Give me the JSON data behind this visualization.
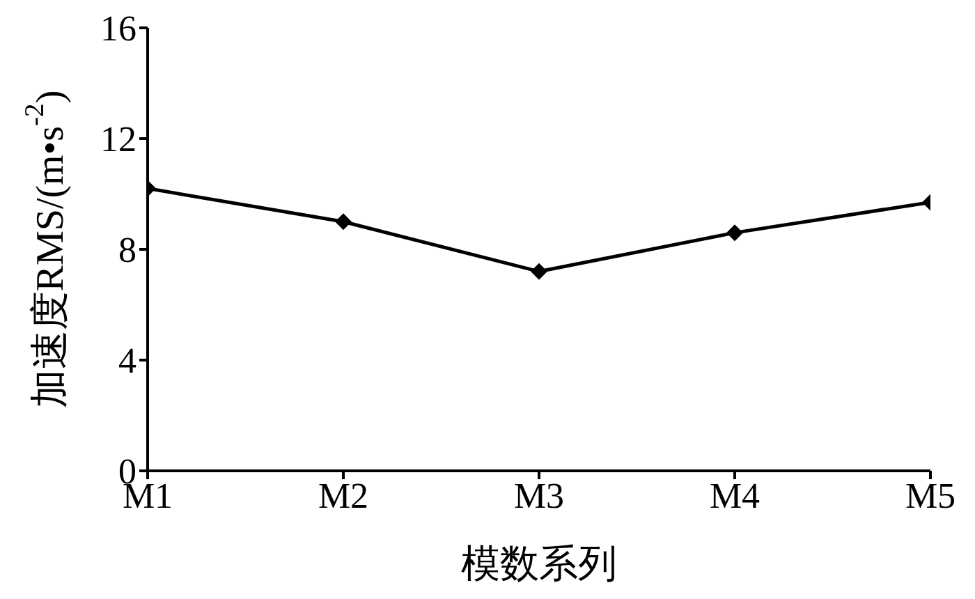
{
  "chart_data": {
    "type": "line",
    "xlabel": "模数系列",
    "ylabel": "加速度RMS/(m•s$^{-2}$)",
    "categories": [
      "M1",
      "M2",
      "M3",
      "M4",
      "M5"
    ],
    "series": [
      {
        "color": "#000000",
        "values": [
          10.2,
          9.0,
          7.2,
          8.6,
          9.7
        ]
      }
    ],
    "ylim": [
      0,
      16
    ],
    "yticks": [
      0,
      4,
      8,
      12,
      16
    ],
    "grid": false,
    "legend": false,
    "marker": "diamond",
    "line_style": "solid"
  }
}
